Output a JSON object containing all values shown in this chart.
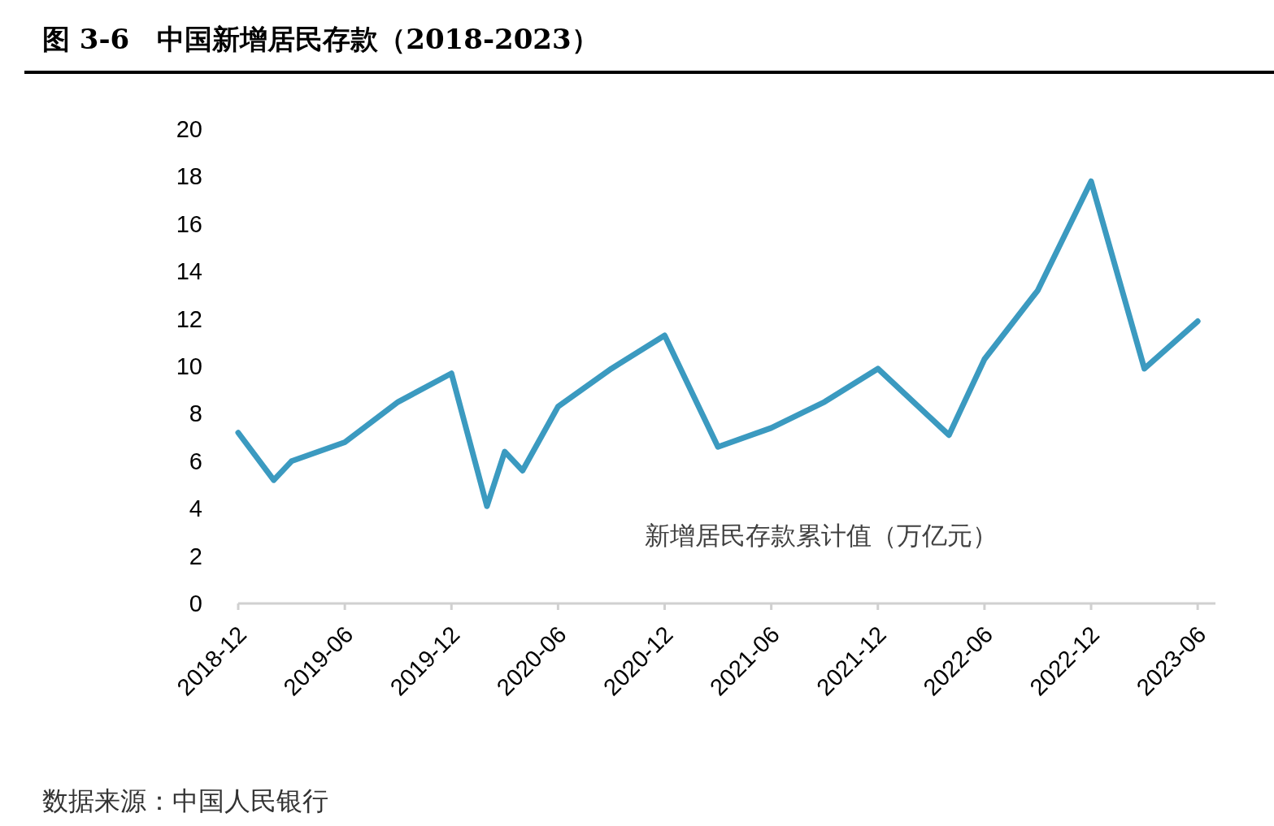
{
  "chart_data": {
    "type": "line",
    "title": "图 3-6　中国新增居民存款（2018-2023）",
    "x": [
      "2018-12",
      "2019-02",
      "2019-03",
      "2019-06",
      "2019-09",
      "2019-12",
      "2020-02",
      "2020-03",
      "2020-04",
      "2020-06",
      "2020-09",
      "2020-12",
      "2021-03",
      "2021-06",
      "2021-09",
      "2021-12",
      "2022-04",
      "2022-06",
      "2022-09",
      "2022-12",
      "2023-03",
      "2023-06"
    ],
    "series": [
      {
        "name": "新增居民存款累计值（万亿元）",
        "color": "#3b9ac0",
        "values": [
          7.2,
          5.2,
          6.0,
          6.8,
          8.5,
          9.7,
          4.1,
          6.4,
          5.6,
          8.3,
          9.9,
          11.3,
          6.6,
          7.4,
          8.5,
          9.9,
          7.1,
          10.3,
          13.2,
          17.8,
          9.9,
          11.9
        ]
      }
    ],
    "xlim": [
      "2018-12",
      "2023-07"
    ],
    "xticks": [
      "2018-12",
      "2019-06",
      "2019-12",
      "2020-06",
      "2020-12",
      "2021-06",
      "2021-12",
      "2022-06",
      "2022-12",
      "2023-06"
    ],
    "ylim": [
      0,
      20
    ],
    "yticks": [
      0,
      2,
      4,
      6,
      8,
      10,
      12,
      14,
      16,
      18,
      20
    ],
    "grid": false,
    "legend": "bottom",
    "marker": "none",
    "line_style": "solid",
    "annotations": [
      "数据来源：中国人民银行"
    ]
  }
}
